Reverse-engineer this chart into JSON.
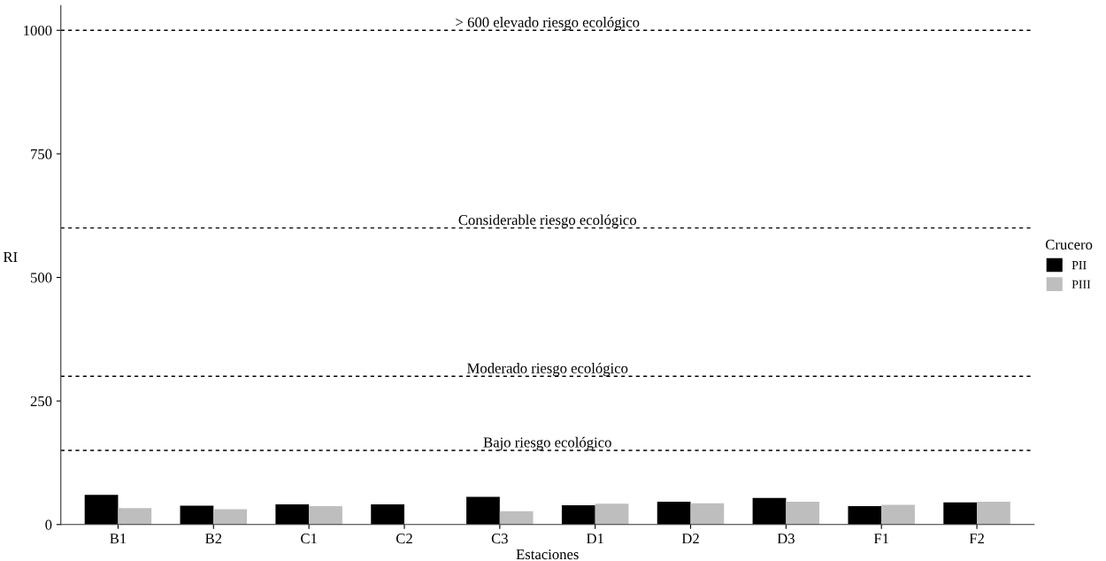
{
  "chart_data": {
    "type": "bar",
    "xlabel": "Estaciones",
    "ylabel": "RI",
    "legend_title": "Crucero",
    "legend": "right",
    "categories": [
      "B1",
      "B2",
      "C1",
      "C2",
      "C3",
      "D1",
      "D2",
      "D3",
      "F1",
      "F2"
    ],
    "series": [
      {
        "name": "PII",
        "color": "#000000",
        "values": [
          60,
          38,
          41,
          41,
          56,
          39,
          46,
          54,
          37,
          45
        ]
      },
      {
        "name": "PIII",
        "color": "#bebebe",
        "values": [
          33,
          31,
          37,
          null,
          27,
          42,
          43,
          46,
          40,
          46
        ]
      }
    ],
    "ylim": [
      0,
      1050
    ],
    "yticks": [
      0,
      250,
      500,
      750,
      1000
    ],
    "grid": false,
    "ref_lines": [
      {
        "axis": "y",
        "value": 150,
        "label": "Bajo riesgo ecológico",
        "line_style": "dashed",
        "color": "#000000"
      },
      {
        "axis": "y",
        "value": 300,
        "label": "Moderado riesgo ecológico",
        "line_style": "dashed",
        "color": "#000000"
      },
      {
        "axis": "y",
        "value": 600,
        "label": "Considerable riesgo ecológico",
        "line_style": "dashed",
        "color": "#000000"
      },
      {
        "axis": "y",
        "value": 1000,
        "label": "> 600 elevado riesgo ecológico",
        "line_style": "dashed",
        "color": "#000000"
      }
    ]
  }
}
